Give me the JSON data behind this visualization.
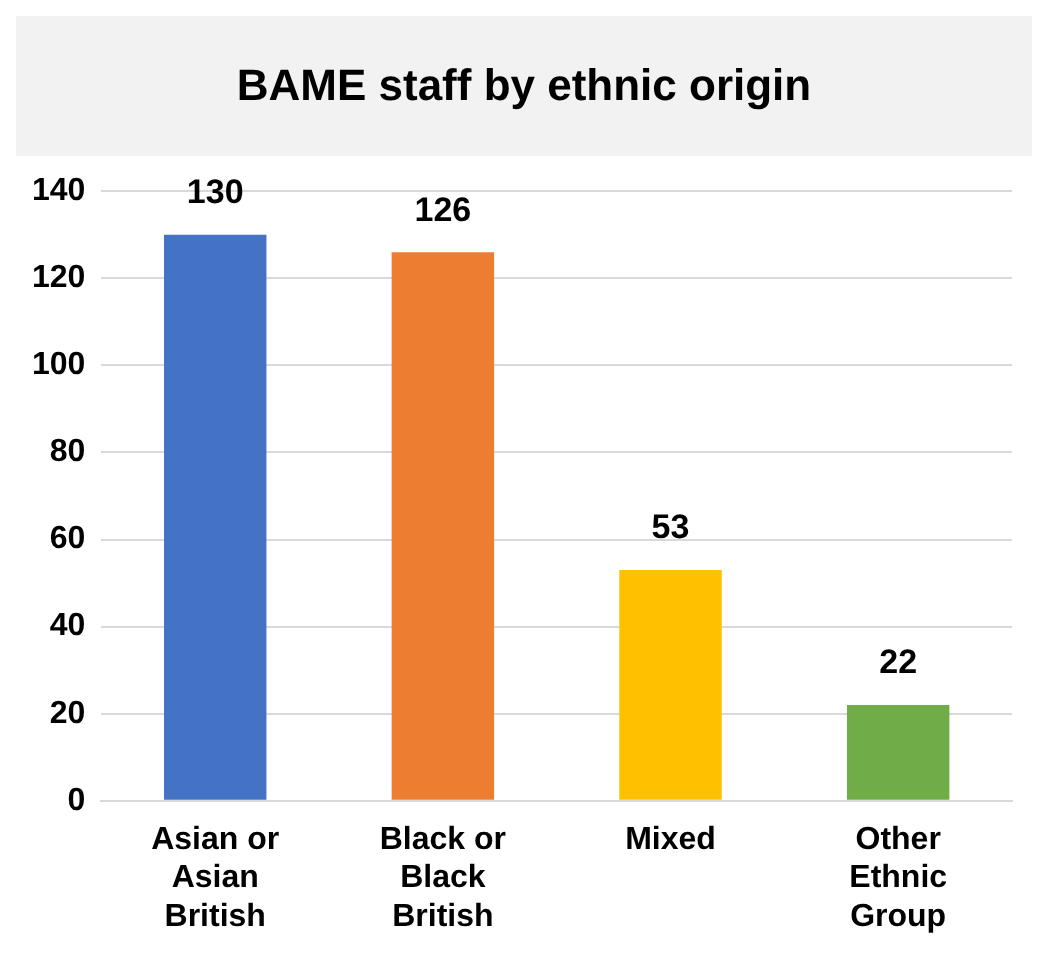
{
  "chart_data": {
    "type": "bar",
    "title": "BAME staff by ethnic origin",
    "categories": [
      "Asian or Asian British",
      "Black or Black British",
      "Mixed",
      "Other Ethnic Group"
    ],
    "values": [
      130,
      126,
      53,
      22
    ],
    "colors": [
      "#4472c4",
      "#ed7d31",
      "#ffc000",
      "#70ad47"
    ],
    "ylim": [
      0,
      140
    ],
    "yticks": [
      0,
      20,
      40,
      60,
      80,
      100,
      120,
      140
    ],
    "grid": true,
    "data_labels": true,
    "legend": false
  }
}
